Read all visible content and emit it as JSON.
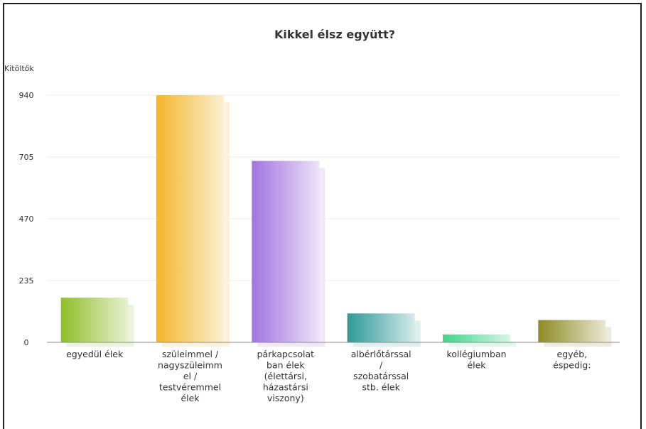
{
  "chart_data": {
    "type": "bar",
    "title": "Kikkel élsz együtt?",
    "ylabel": "Kitöltők",
    "xlabel": "",
    "ylim": [
      0,
      940
    ],
    "yticks": [
      "0",
      "235",
      "470",
      "705",
      "940"
    ],
    "grid": true,
    "categories": [
      [
        "egyedül élek"
      ],
      [
        "szüleimmel /",
        "nagyszüleimm",
        "el /",
        "testvéremmel",
        "élek"
      ],
      [
        "párkapcsolat",
        "ban élek",
        "(élettársi,",
        "házastársi",
        "viszony)"
      ],
      [
        "albérlőtárssal",
        "/",
        "szobatárssal",
        "stb. élek"
      ],
      [
        "kollégiumban",
        "élek"
      ],
      [
        "egyéb,",
        "éspedig:"
      ]
    ],
    "values": [
      170,
      940,
      690,
      110,
      30,
      85
    ],
    "colors": [
      "#8fbf2a",
      "#f2b62b",
      "#a275e0",
      "#2f9a96",
      "#3ed58c",
      "#8f8b25"
    ]
  }
}
